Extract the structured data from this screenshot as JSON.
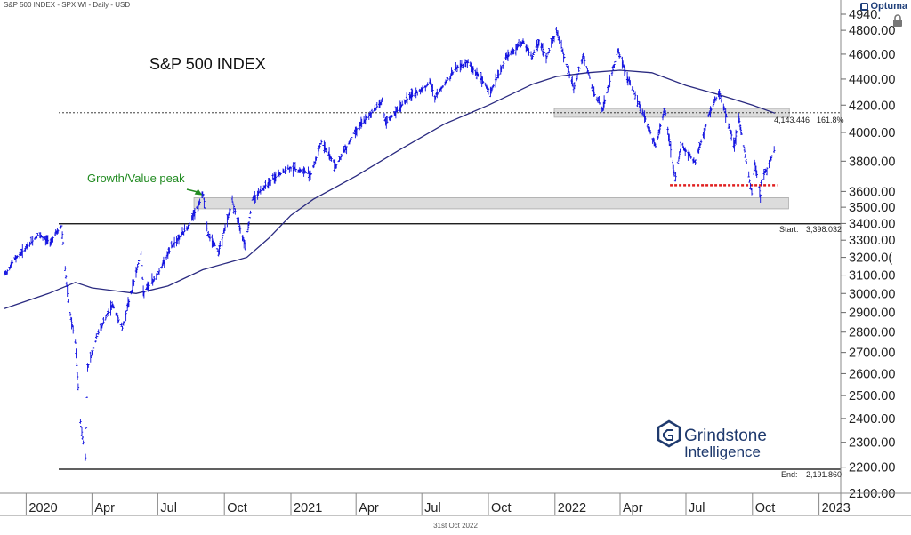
{
  "header": {
    "text": "S&P 500 INDEX - SPX:WI - Daily - USD"
  },
  "logo": {
    "label": "Optuma",
    "color": "#1f3f7a",
    "icon": "lock-icon"
  },
  "footer": {
    "date": "31st Oct 2022"
  },
  "brand": {
    "line1": "Grindstone",
    "line2": "Intelligence"
  },
  "chart_data": {
    "type": "line",
    "title": "S&P 500 INDEX",
    "scale": "log",
    "x_range": [
      "2019-12-02",
      "2023-01-31"
    ],
    "y_range": [
      2100,
      4940
    ],
    "y_ticks": [
      {
        "v": 4940,
        "label": "4940."
      },
      {
        "v": 4800,
        "label": "4800.00"
      },
      {
        "v": 4600,
        "label": "4600.00"
      },
      {
        "v": 4400,
        "label": "4400.00"
      },
      {
        "v": 4200,
        "label": "4200.00"
      },
      {
        "v": 4000,
        "label": "4000.00"
      },
      {
        "v": 3800,
        "label": "3800.00"
      },
      {
        "v": 3600,
        "label": "3600.00"
      },
      {
        "v": 3500,
        "label": "3500.00"
      },
      {
        "v": 3400,
        "label": "3400.00"
      },
      {
        "v": 3300,
        "label": "3300.00"
      },
      {
        "v": 3200,
        "label": "3200.0("
      },
      {
        "v": 3100,
        "label": "3100.00"
      },
      {
        "v": 3000,
        "label": "3000.00"
      },
      {
        "v": 2900,
        "label": "2900.00"
      },
      {
        "v": 2800,
        "label": "2800.00"
      },
      {
        "v": 2700,
        "label": "2700.00"
      },
      {
        "v": 2600,
        "label": "2600.00"
      },
      {
        "v": 2500,
        "label": "2500.00"
      },
      {
        "v": 2400,
        "label": "2400.00"
      },
      {
        "v": 2300,
        "label": "2300.00"
      },
      {
        "v": 2200,
        "label": "2200.00"
      },
      {
        "v": 2100,
        "label": "2100.00"
      }
    ],
    "x_ticks": [
      {
        "date": "2020-01-01",
        "label": "2020"
      },
      {
        "date": "2020-04-01",
        "label": "Apr"
      },
      {
        "date": "2020-07-01",
        "label": "Jul"
      },
      {
        "date": "2020-10-01",
        "label": "Oct"
      },
      {
        "date": "2021-01-01",
        "label": "2021"
      },
      {
        "date": "2021-04-01",
        "label": "Apr"
      },
      {
        "date": "2021-07-01",
        "label": "Jul"
      },
      {
        "date": "2021-10-01",
        "label": "Oct"
      },
      {
        "date": "2022-01-01",
        "label": "2022"
      },
      {
        "date": "2022-04-01",
        "label": "Apr"
      },
      {
        "date": "2022-07-01",
        "label": "Jul"
      },
      {
        "date": "2022-10-01",
        "label": "Oct"
      },
      {
        "date": "2023-01-01",
        "label": "2023"
      }
    ],
    "series": [
      {
        "type": "bars",
        "color": "#1010e0",
        "points": [
          [
            "2019-12-02",
            3100
          ],
          [
            "2019-12-16",
            3190
          ],
          [
            "2020-01-02",
            3258
          ],
          [
            "2020-01-17",
            3330
          ],
          [
            "2020-02-03",
            3290
          ],
          [
            "2020-02-19",
            3386
          ],
          [
            "2020-02-28",
            2954
          ],
          [
            "2020-03-09",
            2746
          ],
          [
            "2020-03-16",
            2386
          ],
          [
            "2020-03-23",
            2237
          ],
          [
            "2020-03-26",
            2630
          ],
          [
            "2020-04-09",
            2790
          ],
          [
            "2020-04-29",
            2940
          ],
          [
            "2020-05-13",
            2820
          ],
          [
            "2020-06-08",
            3232
          ],
          [
            "2020-06-11",
            3002
          ],
          [
            "2020-06-30",
            3100
          ],
          [
            "2020-07-22",
            3276
          ],
          [
            "2020-08-12",
            3380
          ],
          [
            "2020-09-02",
            3580
          ],
          [
            "2020-09-08",
            3331
          ],
          [
            "2020-09-23",
            3237
          ],
          [
            "2020-10-12",
            3534
          ],
          [
            "2020-10-30",
            3270
          ],
          [
            "2020-11-09",
            3550
          ],
          [
            "2020-12-01",
            3662
          ],
          [
            "2020-12-31",
            3756
          ],
          [
            "2021-01-29",
            3714
          ],
          [
            "2021-02-12",
            3934
          ],
          [
            "2021-03-04",
            3768
          ],
          [
            "2021-04-01",
            4019
          ],
          [
            "2021-05-07",
            4232
          ],
          [
            "2021-05-12",
            4063
          ],
          [
            "2021-06-11",
            4247
          ],
          [
            "2021-07-13",
            4369
          ],
          [
            "2021-07-19",
            4258
          ],
          [
            "2021-08-16",
            4479
          ],
          [
            "2021-09-02",
            4537
          ],
          [
            "2021-10-04",
            4300
          ],
          [
            "2021-10-26",
            4575
          ],
          [
            "2021-11-18",
            4705
          ],
          [
            "2021-11-30",
            4567
          ],
          [
            "2021-12-10",
            4712
          ],
          [
            "2021-12-20",
            4568
          ],
          [
            "2022-01-03",
            4796
          ],
          [
            "2022-01-27",
            4326
          ],
          [
            "2022-02-09",
            4587
          ],
          [
            "2022-02-24",
            4289
          ],
          [
            "2022-03-08",
            4170
          ],
          [
            "2022-03-29",
            4631
          ],
          [
            "2022-04-12",
            4397
          ],
          [
            "2022-05-02",
            4155
          ],
          [
            "2022-05-20",
            3901
          ],
          [
            "2022-06-02",
            4176
          ],
          [
            "2022-06-16",
            3667
          ],
          [
            "2022-06-24",
            3912
          ],
          [
            "2022-07-14",
            3790
          ],
          [
            "2022-08-01",
            4118
          ],
          [
            "2022-08-16",
            4305
          ],
          [
            "2022-09-06",
            3908
          ],
          [
            "2022-09-12",
            4110
          ],
          [
            "2022-09-30",
            3585
          ],
          [
            "2022-10-04",
            3791
          ],
          [
            "2022-10-12",
            3577
          ],
          [
            "2022-10-13",
            3670
          ],
          [
            "2022-10-21",
            3752
          ],
          [
            "2022-10-31",
            3872
          ]
        ]
      },
      {
        "type": "moving-average",
        "color": "#2a2a80",
        "points": [
          [
            "2019-12-02",
            2920
          ],
          [
            "2020-02-01",
            3000
          ],
          [
            "2020-03-09",
            3060
          ],
          [
            "2020-04-01",
            3030
          ],
          [
            "2020-06-01",
            3000
          ],
          [
            "2020-07-15",
            3040
          ],
          [
            "2020-09-01",
            3130
          ],
          [
            "2020-11-01",
            3200
          ],
          [
            "2020-12-01",
            3310
          ],
          [
            "2021-01-01",
            3450
          ],
          [
            "2021-02-01",
            3550
          ],
          [
            "2021-04-01",
            3700
          ],
          [
            "2021-06-01",
            3880
          ],
          [
            "2021-08-01",
            4060
          ],
          [
            "2021-10-01",
            4200
          ],
          [
            "2021-12-01",
            4360
          ],
          [
            "2022-01-03",
            4420
          ],
          [
            "2022-02-15",
            4450
          ],
          [
            "2022-04-01",
            4470
          ],
          [
            "2022-05-15",
            4450
          ],
          [
            "2022-07-01",
            4350
          ],
          [
            "2022-08-15",
            4280
          ],
          [
            "2022-10-01",
            4200
          ],
          [
            "2022-11-01",
            4140
          ]
        ]
      }
    ],
    "annotations": {
      "fib_line": {
        "value": 4143.446,
        "label": "4,143.446",
        "pct": "161.8%"
      },
      "start_line": {
        "value": 3398.032,
        "label_prefix": "Start:",
        "label": "3,398.032"
      },
      "end_line": {
        "value": 2191.86,
        "label_prefix": "End:",
        "label": "2,191.860"
      },
      "zone_upper": {
        "from": "2021-12-31",
        "to": "2022-11-21",
        "low": 4110,
        "high": 4175
      },
      "zone_lower": {
        "from": "2020-08-20",
        "to": "2022-11-20",
        "low": 3490,
        "high": 3560
      },
      "support": {
        "from": "2022-06-09",
        "to": "2022-11-04",
        "value": 3640,
        "color": "#e02020"
      },
      "callout": {
        "text": "Growth/Value peak",
        "color": "#228b22",
        "target_date": "2020-09-02",
        "target_value": 3570
      }
    }
  }
}
